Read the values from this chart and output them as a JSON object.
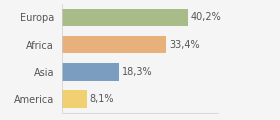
{
  "categories": [
    "Europa",
    "Africa",
    "Asia",
    "America"
  ],
  "values": [
    40.2,
    33.4,
    18.3,
    8.1
  ],
  "labels": [
    "40,2%",
    "33,4%",
    "18,3%",
    "8,1%"
  ],
  "bar_colors": [
    "#a8bc8a",
    "#e8b07a",
    "#7b9dc0",
    "#f0d070"
  ],
  "background_color": "#f5f5f5",
  "label_fontsize": 7.0,
  "tick_fontsize": 7.0,
  "xlim": [
    0,
    50
  ],
  "bar_height": 0.65
}
